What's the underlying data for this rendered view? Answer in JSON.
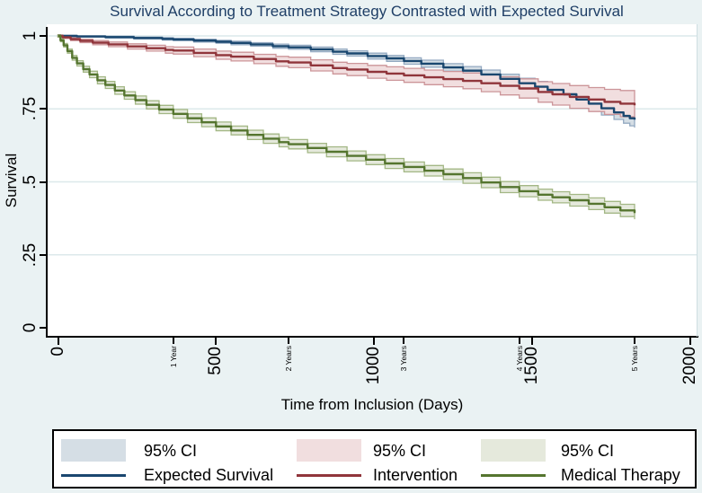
{
  "colors": {
    "background": "#EAF2F3",
    "plot_background": "#FFFFFF",
    "grid": "#DCE9EB",
    "axis": "#000000",
    "title_text": "#1E3E66"
  },
  "chart_data": {
    "type": "line",
    "subtype": "kaplan-meier-step-with-ci-bands",
    "title": "Survival According to Treatment Strategy Contrasted with Expected Survival",
    "xlabel": "Time from Inclusion (Days)",
    "ylabel": "Survival",
    "xlim": [
      0,
      2030
    ],
    "ylim": [
      0,
      1.04
    ],
    "grid": "horizontal",
    "legend_position": "bottom",
    "y_ticks": [
      {
        "v": 1,
        "label": "1"
      },
      {
        "v": 0.75,
        "label": ".75"
      },
      {
        "v": 0.5,
        "label": ".5"
      },
      {
        "v": 0.25,
        "label": ".25"
      },
      {
        "v": 0,
        "label": "0"
      }
    ],
    "x_ticks_major": [
      {
        "d": 0,
        "label": "0"
      },
      {
        "d": 500,
        "label": "500"
      },
      {
        "d": 1000,
        "label": "1000"
      },
      {
        "d": 1500,
        "label": "1500"
      },
      {
        "d": 2000,
        "label": "2000"
      }
    ],
    "x_ticks_minor": [
      {
        "d": 365,
        "label": "1 Year"
      },
      {
        "d": 730,
        "label": "2 Years"
      },
      {
        "d": 1095,
        "label": "3 Years"
      },
      {
        "d": 1460,
        "label": "4 Years"
      },
      {
        "d": 1825,
        "label": "5 Years"
      }
    ],
    "series": [
      {
        "name": "Expected Survival",
        "ci_label": "95% CI",
        "color": "#1A476F",
        "band_color": "#D5DEE5",
        "band_edge_color": "#93A9C1",
        "points": [
          [
            0,
            1.0,
            0.002
          ],
          [
            60,
            0.998,
            0.002
          ],
          [
            150,
            0.996,
            0.003
          ],
          [
            240,
            0.993,
            0.003
          ],
          [
            330,
            0.99,
            0.004
          ],
          [
            365,
            0.988,
            0.004
          ],
          [
            430,
            0.984,
            0.005
          ],
          [
            500,
            0.98,
            0.005
          ],
          [
            548,
            0.976,
            0.006
          ],
          [
            610,
            0.971,
            0.006
          ],
          [
            680,
            0.965,
            0.007
          ],
          [
            730,
            0.961,
            0.007
          ],
          [
            800,
            0.954,
            0.008
          ],
          [
            870,
            0.946,
            0.009
          ],
          [
            915,
            0.94,
            0.009
          ],
          [
            980,
            0.931,
            0.01
          ],
          [
            1040,
            0.923,
            0.01
          ],
          [
            1095,
            0.914,
            0.011
          ],
          [
            1150,
            0.905,
            0.012
          ],
          [
            1220,
            0.892,
            0.013
          ],
          [
            1282,
            0.881,
            0.014
          ],
          [
            1340,
            0.868,
            0.015
          ],
          [
            1400,
            0.853,
            0.016
          ],
          [
            1460,
            0.838,
            0.017
          ],
          [
            1510,
            0.826,
            0.018
          ],
          [
            1550,
            0.815,
            0.019
          ],
          [
            1600,
            0.8,
            0.02
          ],
          [
            1641,
            0.782,
            0.021
          ],
          [
            1680,
            0.768,
            0.022
          ],
          [
            1720,
            0.752,
            0.023
          ],
          [
            1760,
            0.738,
            0.024
          ],
          [
            1790,
            0.726,
            0.025
          ],
          [
            1810,
            0.718,
            0.026
          ],
          [
            1825,
            0.713,
            0.027
          ]
        ]
      },
      {
        "name": "Intervention",
        "ci_label": "95% CI",
        "color": "#90353B",
        "band_color": "#F1DEDF",
        "band_edge_color": "#CC9599",
        "points": [
          [
            0,
            1.0,
            0.003
          ],
          [
            15,
            0.995,
            0.004
          ],
          [
            40,
            0.989,
            0.005
          ],
          [
            70,
            0.983,
            0.006
          ],
          [
            110,
            0.977,
            0.007
          ],
          [
            160,
            0.971,
            0.008
          ],
          [
            220,
            0.964,
            0.009
          ],
          [
            280,
            0.958,
            0.01
          ],
          [
            340,
            0.952,
            0.011
          ],
          [
            365,
            0.95,
            0.012
          ],
          [
            430,
            0.942,
            0.013
          ],
          [
            500,
            0.934,
            0.014
          ],
          [
            548,
            0.929,
            0.015
          ],
          [
            620,
            0.921,
            0.016
          ],
          [
            690,
            0.913,
            0.017
          ],
          [
            730,
            0.909,
            0.018
          ],
          [
            800,
            0.899,
            0.019
          ],
          [
            870,
            0.89,
            0.02
          ],
          [
            915,
            0.885,
            0.021
          ],
          [
            980,
            0.877,
            0.022
          ],
          [
            1040,
            0.871,
            0.023
          ],
          [
            1095,
            0.865,
            0.024
          ],
          [
            1160,
            0.858,
            0.025
          ],
          [
            1220,
            0.852,
            0.026
          ],
          [
            1282,
            0.846,
            0.027
          ],
          [
            1340,
            0.838,
            0.029
          ],
          [
            1400,
            0.829,
            0.031
          ],
          [
            1460,
            0.82,
            0.033
          ],
          [
            1520,
            0.808,
            0.035
          ],
          [
            1565,
            0.8,
            0.037
          ],
          [
            1620,
            0.791,
            0.039
          ],
          [
            1680,
            0.782,
            0.041
          ],
          [
            1730,
            0.774,
            0.043
          ],
          [
            1780,
            0.768,
            0.045
          ],
          [
            1825,
            0.762,
            0.046
          ]
        ]
      },
      {
        "name": "Medical Therapy",
        "ci_label": "95% CI",
        "color": "#55752F",
        "band_color": "#E5E9DC",
        "band_edge_color": "#A3B785",
        "points": [
          [
            0,
            1.0,
            0.004
          ],
          [
            8,
            0.985,
            0.005
          ],
          [
            18,
            0.968,
            0.006
          ],
          [
            30,
            0.948,
            0.007
          ],
          [
            45,
            0.925,
            0.008
          ],
          [
            60,
            0.906,
            0.009
          ],
          [
            80,
            0.886,
            0.01
          ],
          [
            100,
            0.868,
            0.011
          ],
          [
            125,
            0.848,
            0.012
          ],
          [
            150,
            0.832,
            0.012
          ],
          [
            180,
            0.813,
            0.013
          ],
          [
            210,
            0.796,
            0.013
          ],
          [
            245,
            0.78,
            0.014
          ],
          [
            280,
            0.764,
            0.014
          ],
          [
            320,
            0.748,
            0.014
          ],
          [
            365,
            0.733,
            0.015
          ],
          [
            410,
            0.718,
            0.015
          ],
          [
            455,
            0.704,
            0.015
          ],
          [
            500,
            0.69,
            0.015
          ],
          [
            548,
            0.676,
            0.015
          ],
          [
            600,
            0.661,
            0.016
          ],
          [
            650,
            0.648,
            0.016
          ],
          [
            700,
            0.636,
            0.016
          ],
          [
            730,
            0.629,
            0.016
          ],
          [
            790,
            0.616,
            0.016
          ],
          [
            850,
            0.603,
            0.017
          ],
          [
            915,
            0.589,
            0.017
          ],
          [
            975,
            0.576,
            0.017
          ],
          [
            1035,
            0.563,
            0.017
          ],
          [
            1095,
            0.551,
            0.017
          ],
          [
            1160,
            0.538,
            0.018
          ],
          [
            1220,
            0.526,
            0.018
          ],
          [
            1282,
            0.513,
            0.018
          ],
          [
            1340,
            0.498,
            0.018
          ],
          [
            1400,
            0.482,
            0.019
          ],
          [
            1460,
            0.468,
            0.019
          ],
          [
            1520,
            0.456,
            0.019
          ],
          [
            1565,
            0.447,
            0.019
          ],
          [
            1620,
            0.437,
            0.02
          ],
          [
            1680,
            0.425,
            0.02
          ],
          [
            1730,
            0.413,
            0.02
          ],
          [
            1780,
            0.402,
            0.021
          ],
          [
            1825,
            0.393,
            0.021
          ]
        ]
      }
    ]
  }
}
